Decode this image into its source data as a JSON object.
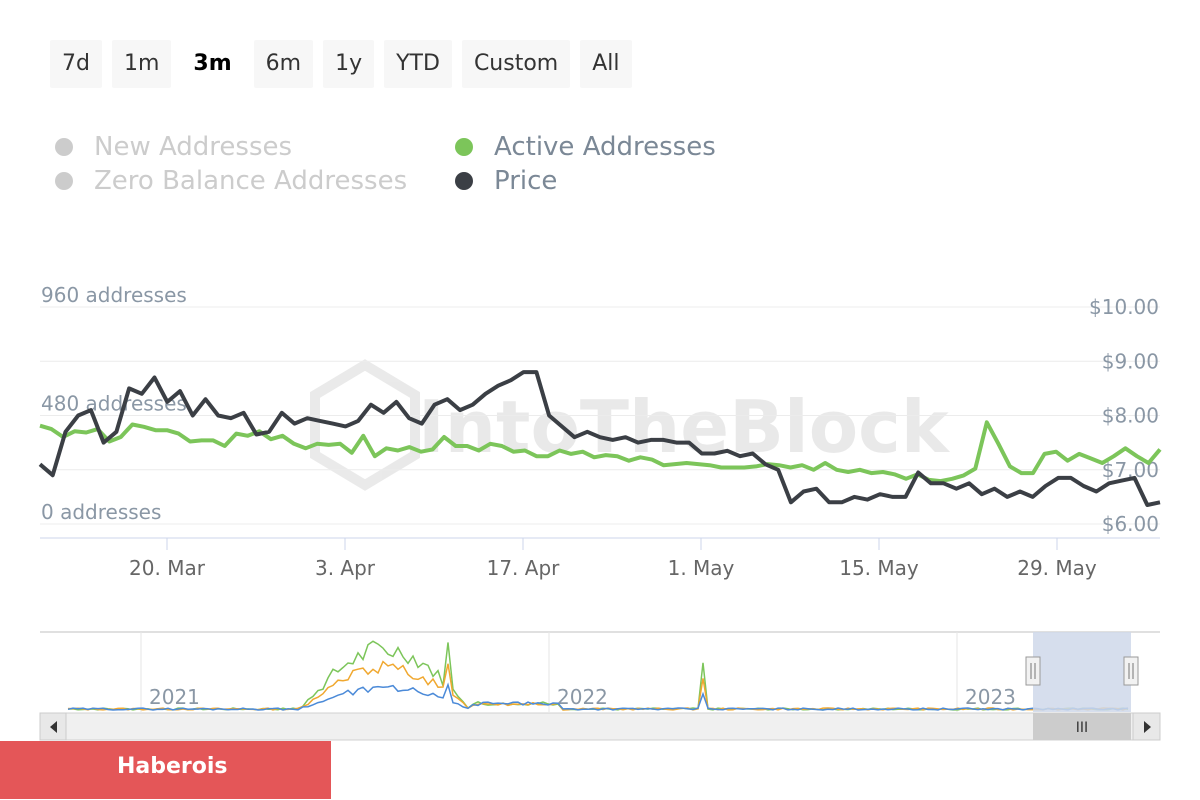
{
  "range_selector": {
    "buttons": [
      "7d",
      "1m",
      "3m",
      "6m",
      "1y",
      "YTD",
      "Custom",
      "All"
    ],
    "selected": "3m"
  },
  "legend": {
    "items": [
      {
        "label": "New Addresses",
        "color": "#cccccc",
        "visible": false
      },
      {
        "label": "Zero Balance Addresses",
        "color": "#cccccc",
        "visible": false
      },
      {
        "label": "Active Addresses",
        "color": "#7cc55a",
        "visible": true
      },
      {
        "label": "Price",
        "color": "#3b3f45",
        "visible": true
      }
    ]
  },
  "watermark": "IntoTheBlock",
  "brand_badge": "Haberois",
  "chart_data": {
    "type": "line",
    "x_ticks": [
      "20. Mar",
      "3. Apr",
      "17. Apr",
      "1. May",
      "15. May",
      "29. May"
    ],
    "y_left": {
      "ticks": [
        "0 addresses",
        "480 addresses",
        "960 addresses"
      ],
      "range": [
        0,
        960
      ]
    },
    "y_right": {
      "ticks": [
        "$6.00",
        "$7.00",
        "$8.00",
        "$9.00",
        "$10.00"
      ],
      "range": [
        6,
        10
      ]
    },
    "x_range_days": [
      0,
      90
    ],
    "series": [
      {
        "name": "Active Addresses",
        "axis": "left",
        "color": "#7cc55a",
        "values": [
          435,
          420,
          385,
          410,
          405,
          420,
          365,
          385,
          440,
          430,
          415,
          415,
          400,
          365,
          370,
          370,
          345,
          400,
          390,
          410,
          375,
          390,
          355,
          335,
          355,
          350,
          355,
          315,
          390,
          300,
          335,
          325,
          340,
          320,
          330,
          385,
          345,
          345,
          325,
          355,
          345,
          320,
          325,
          300,
          300,
          325,
          310,
          320,
          295,
          305,
          300,
          280,
          295,
          285,
          260,
          265,
          270,
          265,
          260,
          250,
          250,
          250,
          255,
          265,
          260,
          250,
          260,
          240,
          270,
          240,
          230,
          240,
          225,
          230,
          220,
          200,
          220,
          195,
          190,
          200,
          215,
          245,
          450,
          355,
          255,
          225,
          225,
          310,
          320,
          280,
          310,
          290,
          270,
          300,
          335,
          300,
          270,
          330
        ],
        "mobile_noted": false
      },
      {
        "name": "Price",
        "axis": "right",
        "color": "#3b3f45",
        "values": [
          7.1,
          6.9,
          7.7,
          8.0,
          8.1,
          7.5,
          7.7,
          8.5,
          8.4,
          8.7,
          8.25,
          8.45,
          8.0,
          8.3,
          8.0,
          7.95,
          8.05,
          7.65,
          7.7,
          8.05,
          7.85,
          7.95,
          7.9,
          7.85,
          7.8,
          7.9,
          8.2,
          8.05,
          8.25,
          7.95,
          7.85,
          8.2,
          8.3,
          8.1,
          8.2,
          8.4,
          8.55,
          8.65,
          8.8,
          8.8,
          8.0,
          7.8,
          7.6,
          7.7,
          7.6,
          7.55,
          7.6,
          7.5,
          7.55,
          7.55,
          7.5,
          7.5,
          7.3,
          7.3,
          7.35,
          7.25,
          7.3,
          7.1,
          7.0,
          6.4,
          6.6,
          6.65,
          6.4,
          6.4,
          6.5,
          6.45,
          6.55,
          6.5,
          6.5,
          6.95,
          6.75,
          6.75,
          6.65,
          6.75,
          6.55,
          6.65,
          6.5,
          6.6,
          6.5,
          6.7,
          6.85,
          6.85,
          6.7,
          6.6,
          6.75,
          6.8,
          6.85,
          6.35,
          6.4
        ]
      }
    ]
  },
  "navigator": {
    "year_labels": [
      "2021",
      "2022",
      "2023"
    ],
    "scroll_thumb_label": "III"
  }
}
